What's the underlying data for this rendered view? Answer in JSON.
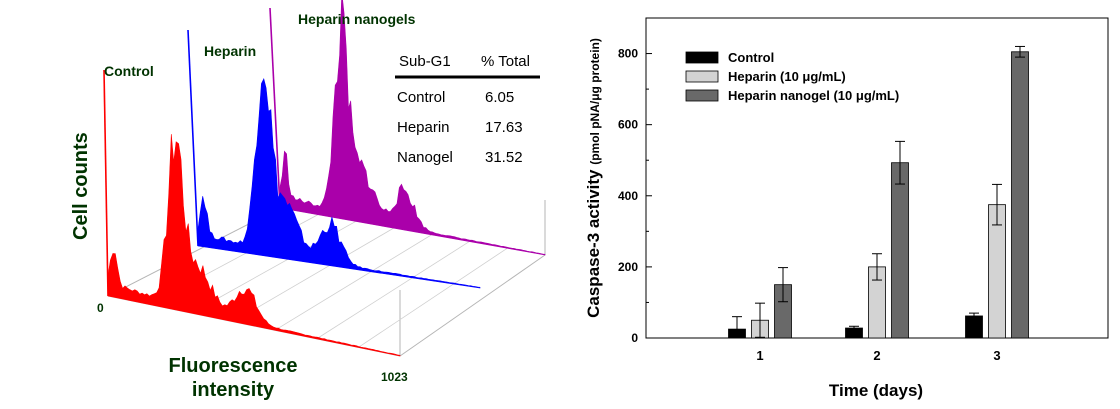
{
  "chart_data": [
    {
      "type": "area",
      "panel": "left",
      "ylabel": "Cell counts",
      "xlabel_line1": "Fluorescence",
      "xlabel_line2": "intensity",
      "x_tick_min": "0",
      "x_tick_max": "1023",
      "series": [
        {
          "name": "Control",
          "color": "#ff0000"
        },
        {
          "name": "Heparin",
          "color": "#0000ff"
        },
        {
          "name": "Heparin nanogels",
          "color": "#aa00aa"
        }
      ],
      "table": {
        "headers": [
          "Sub-G1",
          "% Total"
        ],
        "rows": [
          [
            "Control",
            "6.05"
          ],
          [
            "Heparin",
            "17.63"
          ],
          [
            "Nanogel",
            "31.52"
          ]
        ]
      }
    },
    {
      "type": "bar",
      "panel": "right",
      "xlabel": "Time (days)",
      "ylabel_main": "Caspase-3 activity",
      "ylabel_unit": "(pmol pNA/μg protein)",
      "categories": [
        "1",
        "2",
        "3"
      ],
      "ylim": [
        0,
        900
      ],
      "yticks": [
        0,
        200,
        400,
        600,
        800
      ],
      "legend_position": "top-left",
      "series": [
        {
          "name": "Control",
          "color": "#000000",
          "values": [
            25,
            28,
            62
          ],
          "errors": [
            35,
            5,
            8
          ]
        },
        {
          "name": "Heparin (10 μg/mL)",
          "color": "#d3d3d3",
          "values": [
            50,
            200,
            375
          ],
          "errors": [
            48,
            37,
            57
          ]
        },
        {
          "name": "Heparin nanogel (10 μg/mL)",
          "color": "#696969",
          "values": [
            150,
            493,
            805
          ],
          "errors": [
            48,
            60,
            15
          ]
        }
      ]
    }
  ]
}
